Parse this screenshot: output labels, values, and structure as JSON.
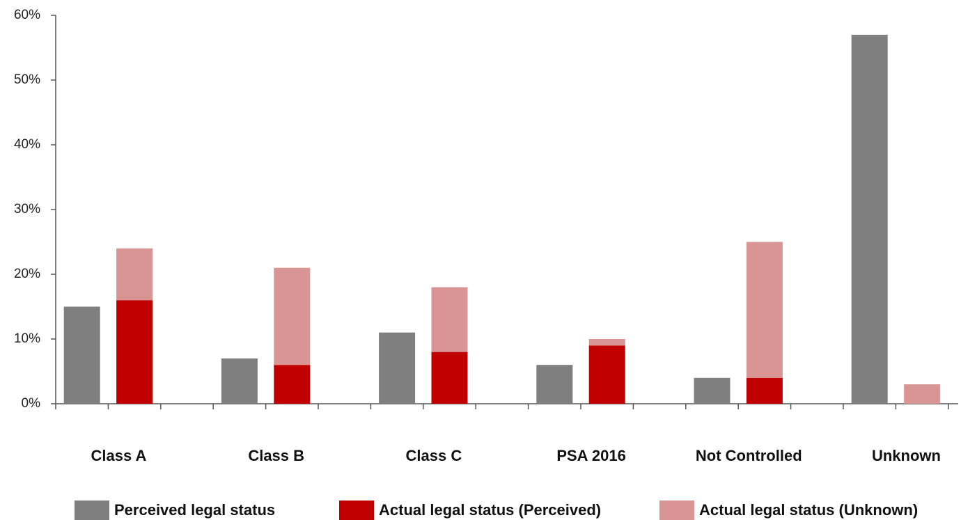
{
  "chart_data": {
    "type": "bar",
    "categories": [
      "Class A",
      "Class B",
      "Class C",
      "PSA 2016",
      "Not Controlled",
      "Unknown"
    ],
    "series": [
      {
        "name": "Perceived legal status",
        "color": "#7f7f7f",
        "values": [
          15,
          7,
          11,
          6,
          4,
          57
        ]
      },
      {
        "name": "Actual legal status (Perceived)",
        "color": "#c00000",
        "values": [
          16,
          6,
          8,
          9,
          4,
          0
        ]
      },
      {
        "name": "Actual legal status (Unknown)",
        "color": "#d99594",
        "values": [
          8,
          15,
          10,
          1,
          21,
          3
        ]
      }
    ],
    "ylim": [
      0,
      60
    ],
    "yticks": [
      {
        "value": 0,
        "label": "0%"
      },
      {
        "value": 10,
        "label": "10%"
      },
      {
        "value": 20,
        "label": "20%"
      },
      {
        "value": 30,
        "label": "30%"
      },
      {
        "value": 40,
        "label": "40%"
      },
      {
        "value": 50,
        "label": "50%"
      },
      {
        "value": 60,
        "label": "60%"
      }
    ],
    "grid": false
  }
}
